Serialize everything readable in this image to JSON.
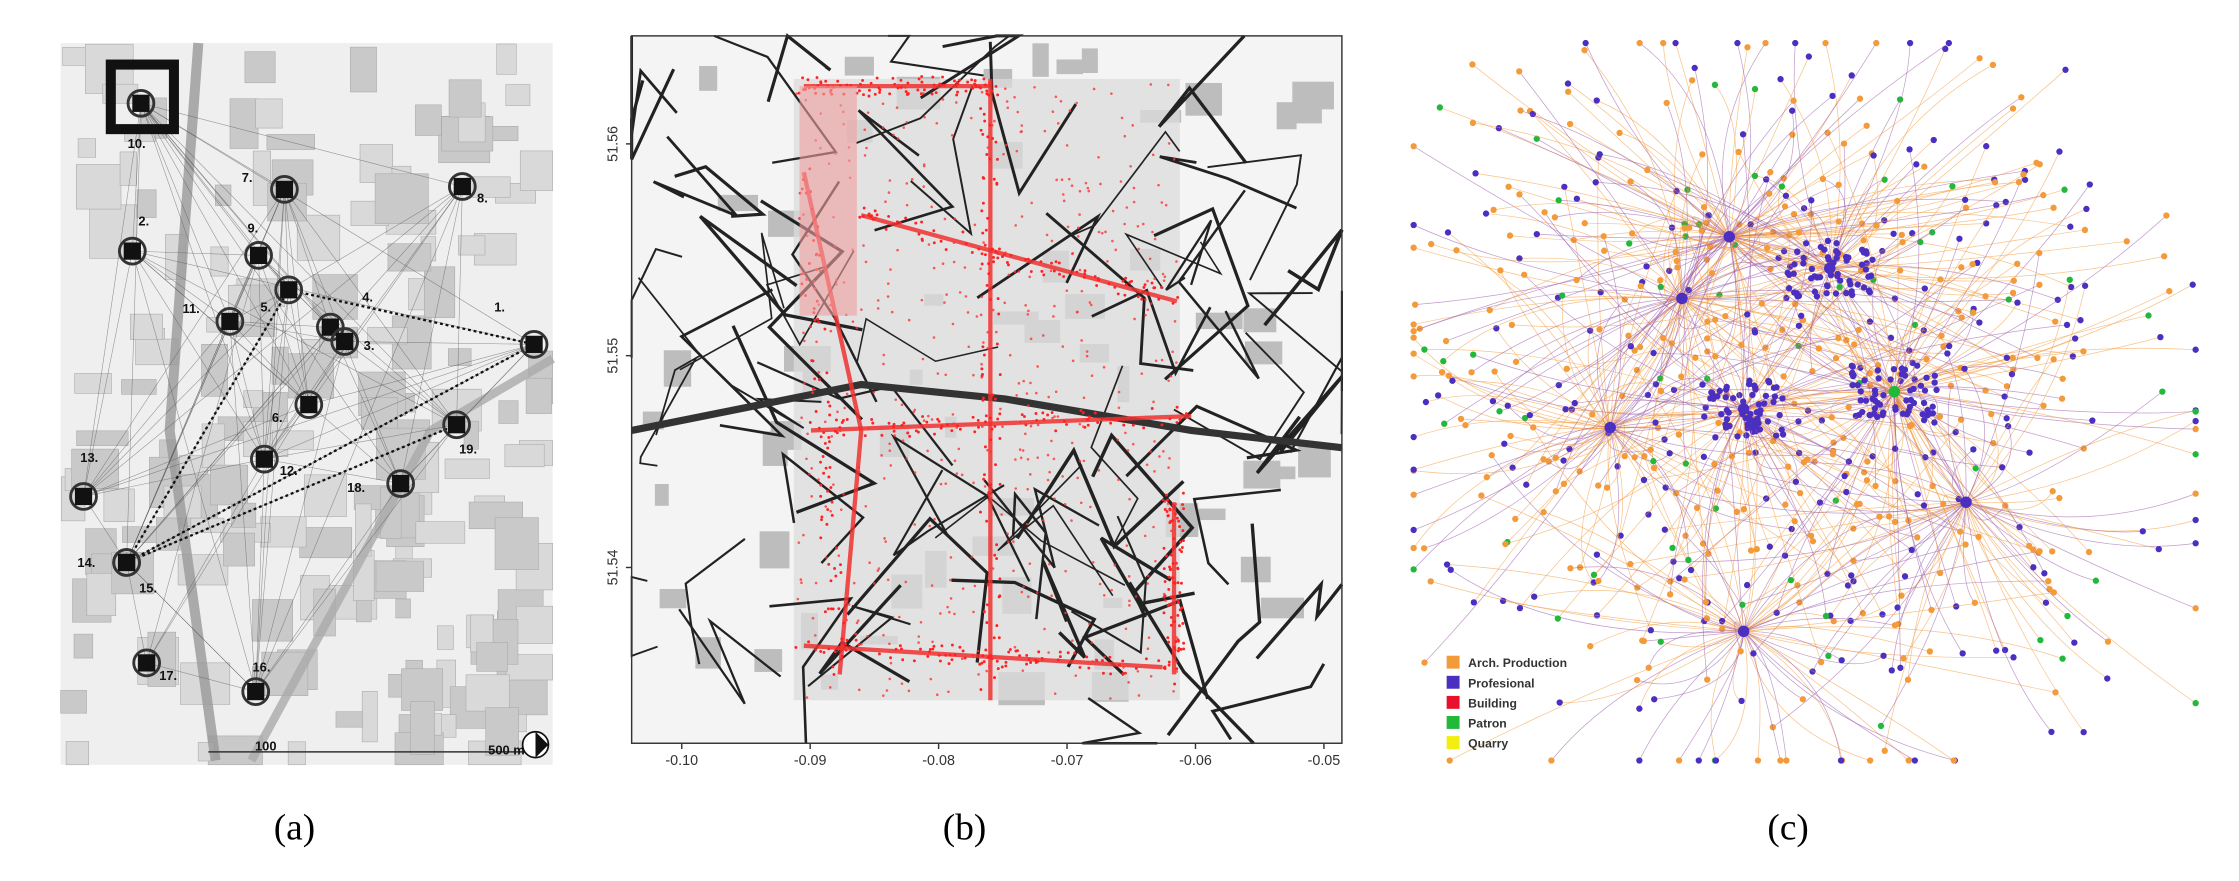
{
  "panels": [
    {
      "caption": "(a)",
      "labels": [
        "10.",
        "7.",
        "8.",
        "2.",
        "9.",
        "4.",
        "1.",
        "11.",
        "5.",
        "3.",
        "6.",
        "13.",
        "12.",
        "19.",
        "18.",
        "14.",
        "15.",
        "16.",
        "17."
      ],
      "scale_labels": [
        "100",
        "500 m"
      ]
    },
    {
      "caption": "(b)",
      "xlim": [
        -0.1039,
        -0.0486
      ],
      "ylim": [
        51.5317,
        51.5651
      ],
      "xticks": [
        {
          "value": -0.1,
          "label": "-0.10"
        },
        {
          "value": -0.09,
          "label": "-0.09"
        },
        {
          "value": -0.08,
          "label": "-0.08"
        },
        {
          "value": -0.07,
          "label": "-0.07"
        },
        {
          "value": -0.06,
          "label": "-0.06"
        },
        {
          "value": -0.05,
          "label": "-0.05"
        }
      ],
      "yticks": [
        51.54,
        51.55,
        51.56
      ]
    },
    {
      "caption": "(c)",
      "legend": [
        {
          "name": "Arch. Production",
          "color": "#f39a3a"
        },
        {
          "name": "Profesional",
          "color": "#4a2fc0"
        },
        {
          "name": "Building",
          "color": "#e8102a"
        },
        {
          "name": "Patron",
          "color": "#22b83a"
        },
        {
          "name": "Quarry",
          "color": "#f2ee10"
        }
      ]
    }
  ]
}
